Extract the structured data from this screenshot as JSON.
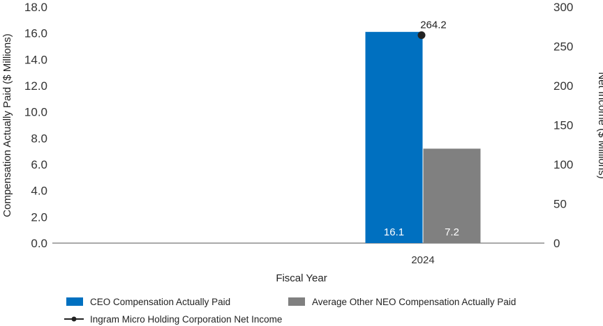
{
  "chart_data": {
    "type": "bar",
    "categories": [
      "2024"
    ],
    "series": [
      {
        "name": "CEO Compensation Actually Paid",
        "axis": "left",
        "values": [
          16.1
        ],
        "color": "#0070c0",
        "labels": [
          "16.1"
        ]
      },
      {
        "name": "Average Other NEO Compensation Actually Paid",
        "axis": "left",
        "values": [
          7.2
        ],
        "color": "#808080",
        "labels": [
          "7.2"
        ]
      }
    ],
    "line_series": [
      {
        "name": "Ingram Micro Holding Corporation Net Income",
        "axis": "right",
        "values": [
          264.2
        ],
        "color": "#222222",
        "labels": [
          "264.2"
        ]
      }
    ],
    "xlabel": "Fiscal Year",
    "ylabel": "Compensation Actually Paid ($ Millions)",
    "y2label": "Net Income ($ Millions)",
    "ylim": [
      0,
      18
    ],
    "y2lim": [
      0,
      300
    ],
    "yticks": [
      "0.0",
      "2.0",
      "4.0",
      "6.0",
      "8.0",
      "10.0",
      "12.0",
      "14.0",
      "16.0",
      "18.0"
    ],
    "y2ticks": [
      "0",
      "50",
      "100",
      "150",
      "200",
      "250",
      "300"
    ],
    "legend_position": "bottom"
  }
}
